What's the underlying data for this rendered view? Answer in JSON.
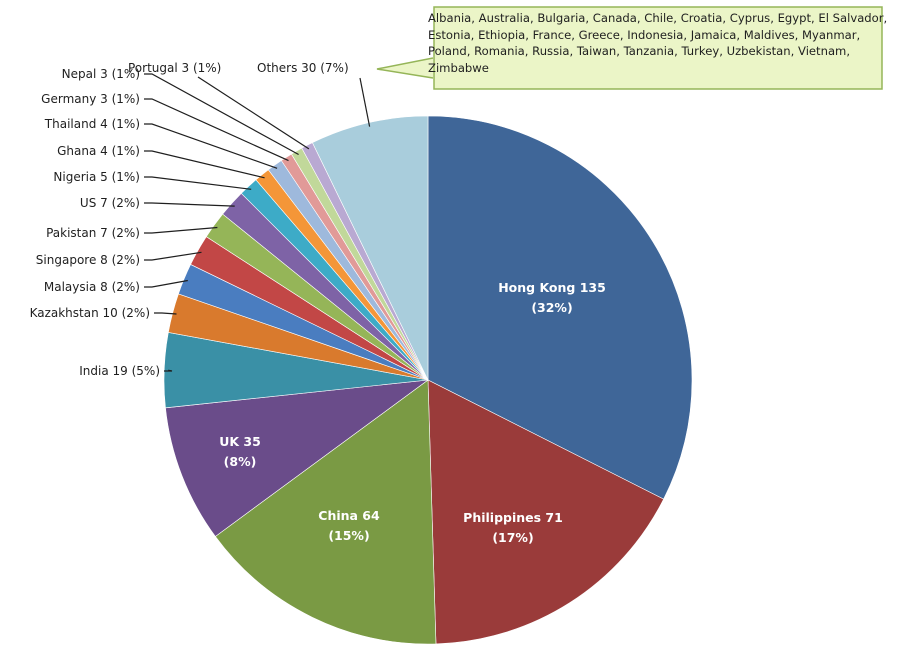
{
  "chart_data": {
    "type": "pie",
    "title": "",
    "start_angle_deg": 0,
    "direction": "clockwise",
    "slices": [
      {
        "label": "Hong Kong",
        "value": 135,
        "percent": "32%",
        "color": "#3F6698",
        "label_position": "inside"
      },
      {
        "label": "Philippines",
        "value": 71,
        "percent": "17%",
        "color": "#9A3B3A",
        "label_position": "inside"
      },
      {
        "label": "China",
        "value": 64,
        "percent": "15%",
        "color": "#7A9A44",
        "label_position": "inside"
      },
      {
        "label": "UK",
        "value": 35,
        "percent": "8%",
        "color": "#6A4C8A",
        "label_position": "inside"
      },
      {
        "label": "India",
        "value": 19,
        "percent": "5%",
        "color": "#3A90A6",
        "label_position": "outside"
      },
      {
        "label": "Kazakhstan",
        "value": 10,
        "percent": "2%",
        "color": "#D97A2D",
        "label_position": "outside"
      },
      {
        "label": "Malaysia",
        "value": 8,
        "percent": "2%",
        "color": "#4A7DC0",
        "label_position": "outside"
      },
      {
        "label": "Singapore",
        "value": 8,
        "percent": "2%",
        "color": "#C24746",
        "label_position": "outside"
      },
      {
        "label": "Pakistan",
        "value": 7,
        "percent": "2%",
        "color": "#95B558",
        "label_position": "outside"
      },
      {
        "label": "US",
        "value": 7,
        "percent": "2%",
        "color": "#7E63A6",
        "label_position": "outside"
      },
      {
        "label": "Nigeria",
        "value": 5,
        "percent": "1%",
        "color": "#3DABC7",
        "label_position": "outside"
      },
      {
        "label": "Ghana",
        "value": 4,
        "percent": "1%",
        "color": "#F49638",
        "label_position": "outside"
      },
      {
        "label": "Thailand",
        "value": 4,
        "percent": "1%",
        "color": "#9EB9DC",
        "label_position": "outside"
      },
      {
        "label": "Germany",
        "value": 3,
        "percent": "1%",
        "color": "#E19A98",
        "label_position": "outside"
      },
      {
        "label": "Nepal",
        "value": 3,
        "percent": "1%",
        "color": "#C1D89A",
        "label_position": "outside"
      },
      {
        "label": "Portugal",
        "value": 3,
        "percent": "1%",
        "color": "#B9A9D2",
        "label_position": "outside"
      },
      {
        "label": "Others",
        "value": 30,
        "percent": "7%",
        "color": "#A9CDDC",
        "label_position": "outside"
      }
    ],
    "callout": {
      "fill": "#EBF5C7",
      "border": "#95B558",
      "countries": [
        "Albania",
        "Australia",
        "Bulgaria",
        "Canada",
        "Chile",
        "Croatia",
        "Cyprus",
        "Egypt",
        "El Salvador",
        "Estonia",
        "Ethiopia",
        "France",
        "Greece",
        "Indonesia",
        "Jamaica",
        "Maldives",
        "Myanmar",
        "Poland",
        "Romania",
        "Russia",
        "Taiwan",
        "Tanzania",
        "Turkey",
        "Uzbekistan",
        "Vietnam",
        "Zimbabwe"
      ]
    }
  }
}
